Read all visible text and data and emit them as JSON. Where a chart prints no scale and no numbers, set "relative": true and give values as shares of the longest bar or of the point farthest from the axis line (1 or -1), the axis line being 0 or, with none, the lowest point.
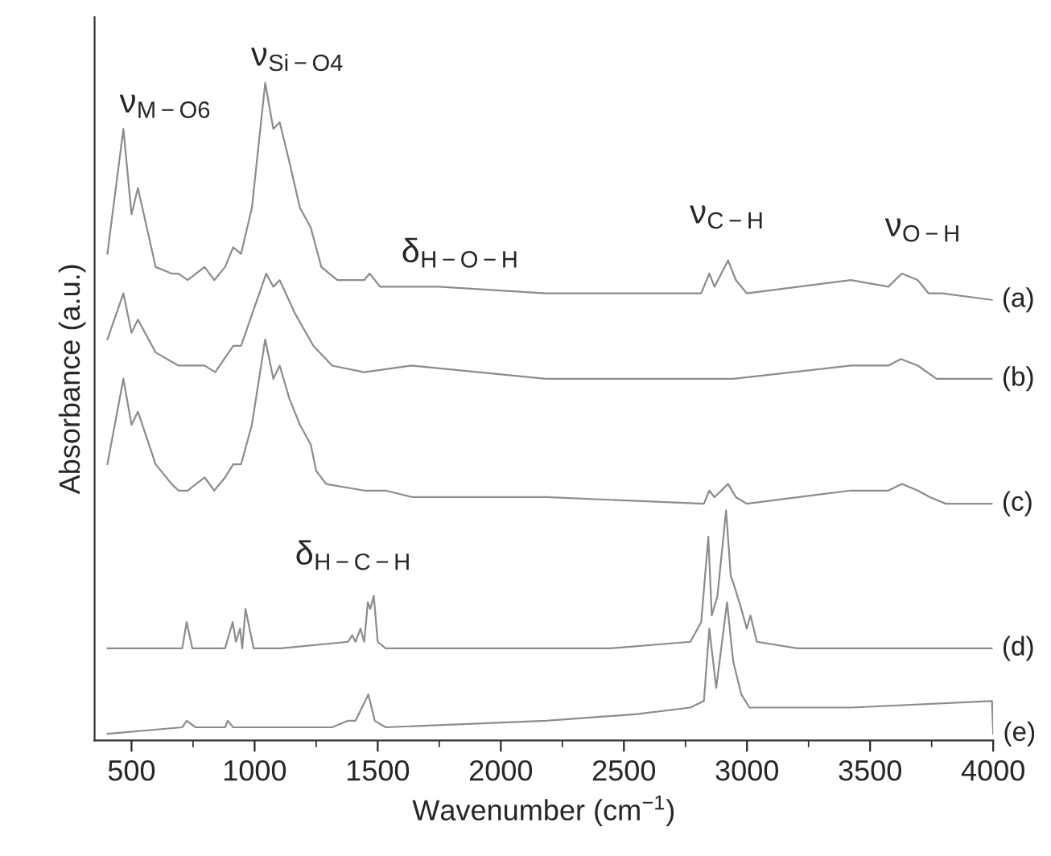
{
  "chart_data": {
    "type": "line",
    "relative": true,
    "xlabel": "Wavenumber (cm$^{−1}$)",
    "ylabel": "Absorbance (a.u.)",
    "xlim": [
      350,
      4000
    ],
    "xticks": [
      500,
      {
        "value": 750,
        "label": null
      },
      1000,
      {
        "value": 1250,
        "label": null
      },
      1500,
      {
        "value": 1750,
        "label": null
      },
      2000,
      {
        "value": 2250,
        "label": null
      },
      2500,
      {
        "value": 2750,
        "label": null
      },
      3000,
      {
        "value": 3250,
        "label": null
      },
      3500,
      {
        "value": 3750,
        "label": null
      },
      4000
    ],
    "tick_labels": "x",
    "grid": false,
    "legend": false,
    "marker": "none",
    "line_style": "solid",
    "series": [
      {
        "name": "(a)",
        "color": "#8c8c8c",
        "x": [
          402,
          467,
          500,
          526,
          598,
          663,
          691,
          728,
          797,
          836,
          880,
          913,
          945,
          989,
          1043,
          1076,
          1102,
          1141,
          1184,
          1228,
          1271,
          1336,
          1445,
          1467,
          1510,
          1630,
          1748,
          2184,
          2814,
          2847,
          2868,
          2923,
          2955,
          2999,
          3422,
          3574,
          3629,
          3694,
          3737,
          3792,
          3995
        ],
        "values": [
          0.74,
          0.93,
          0.8,
          0.84,
          0.72,
          0.71,
          0.71,
          0.7,
          0.72,
          0.7,
          0.72,
          0.75,
          0.74,
          0.81,
          1.0,
          0.93,
          0.94,
          0.88,
          0.81,
          0.78,
          0.72,
          0.7,
          0.7,
          0.71,
          0.69,
          0.69,
          0.69,
          0.68,
          0.68,
          0.71,
          0.69,
          0.73,
          0.7,
          0.68,
          0.7,
          0.69,
          0.71,
          0.7,
          0.68,
          0.68,
          0.67
        ]
      },
      {
        "name": "(b)",
        "color": "#8c8c8c",
        "x": [
          402,
          467,
          500,
          526,
          598,
          691,
          797,
          840,
          913,
          945,
          1047,
          1076,
          1102,
          1163,
          1239,
          1315,
          1445,
          1636,
          2184,
          2944,
          3422,
          3574,
          3625,
          3694,
          3770,
          3995
        ],
        "values": [
          0.61,
          0.68,
          0.62,
          0.64,
          0.59,
          0.57,
          0.57,
          0.56,
          0.6,
          0.6,
          0.71,
          0.69,
          0.7,
          0.65,
          0.6,
          0.57,
          0.56,
          0.57,
          0.55,
          0.55,
          0.57,
          0.57,
          0.58,
          0.57,
          0.55,
          0.55
        ]
      },
      {
        "name": "(c)",
        "color": "#8c8c8c",
        "x": [
          402,
          467,
          500,
          526,
          598,
          663,
          691,
          728,
          797,
          836,
          880,
          913,
          945,
          989,
          1043,
          1076,
          1102,
          1141,
          1184,
          1228,
          1250,
          1291,
          1445,
          1467,
          1532,
          1640,
          2184,
          2825,
          2847,
          2868,
          2923,
          2955,
          2999,
          3422,
          3574,
          3629,
          3694,
          3743,
          3808,
          3995
        ],
        "values": [
          0.42,
          0.55,
          0.48,
          0.5,
          0.42,
          0.39,
          0.38,
          0.38,
          0.4,
          0.38,
          0.4,
          0.42,
          0.42,
          0.48,
          0.61,
          0.55,
          0.57,
          0.52,
          0.48,
          0.45,
          0.41,
          0.39,
          0.38,
          0.38,
          0.38,
          0.37,
          0.37,
          0.36,
          0.38,
          0.37,
          0.39,
          0.37,
          0.36,
          0.38,
          0.38,
          0.39,
          0.38,
          0.37,
          0.36,
          0.36
        ]
      },
      {
        "name": "(d)",
        "color": "#8c8c8c",
        "x": [
          402,
          706,
          724,
          747,
          880,
          911,
          924,
          941,
          950,
          963,
          996,
          1106,
          1380,
          1396,
          1410,
          1430,
          1445,
          1460,
          1470,
          1484,
          1500,
          1532,
          2184,
          2445,
          2770,
          2814,
          2843,
          2857,
          2880,
          2915,
          2934,
          2944,
          2977,
          2999,
          3014,
          3040,
          3205,
          3995
        ],
        "values": [
          0.14,
          0.14,
          0.18,
          0.14,
          0.14,
          0.18,
          0.15,
          0.17,
          0.14,
          0.2,
          0.14,
          0.14,
          0.15,
          0.16,
          0.15,
          0.17,
          0.15,
          0.21,
          0.2,
          0.22,
          0.15,
          0.14,
          0.14,
          0.14,
          0.15,
          0.18,
          0.31,
          0.19,
          0.22,
          0.35,
          0.25,
          0.24,
          0.2,
          0.17,
          0.19,
          0.15,
          0.14,
          0.14
        ]
      },
      {
        "name": "(e)",
        "color": "#8c8c8c",
        "x": [
          402,
          706,
          724,
          760,
          880,
          891,
          913,
          1106,
          1315,
          1380,
          1410,
          1462,
          1488,
          1532,
          2184,
          2553,
          2770,
          2825,
          2847,
          2875,
          2919,
          2944,
          2977,
          3010,
          3422,
          3995,
          4000
        ],
        "values": [
          0.01,
          0.02,
          0.03,
          0.02,
          0.02,
          0.03,
          0.02,
          0.02,
          0.02,
          0.03,
          0.03,
          0.07,
          0.03,
          0.02,
          0.03,
          0.04,
          0.05,
          0.06,
          0.17,
          0.08,
          0.21,
          0.12,
          0.07,
          0.05,
          0.05,
          0.06,
          0.01
        ]
      }
    ],
    "annotations": [
      "ν$_{M−O6}$",
      "ν$_{Si−O4}$",
      "δ$_{H−O−H}$",
      "ν$_{C−H}$",
      "ν$_{O−H}$",
      "δ$_{H−C−H}$"
    ]
  }
}
